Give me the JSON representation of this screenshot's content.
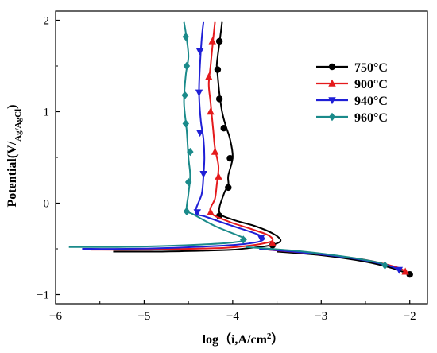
{
  "chart_data": {
    "type": "line",
    "title": "",
    "xlabel": "log（i,A/cm",
    "xlabel_sup": "2",
    "xlabel_end": "）",
    "ylabel": "Potential(V/",
    "ylabel_sub": "Ag/AgCl",
    "ylabel_end": ")",
    "xlim": [
      -6,
      -1.8
    ],
    "ylim": [
      -1.1,
      2.1
    ],
    "xticks": [
      -6,
      -5,
      -4,
      -3,
      -2
    ],
    "yticks": [
      -1,
      0,
      1,
      2
    ],
    "xtick_labels": [
      "−6",
      "−5",
      "−4",
      "−3",
      "−2"
    ],
    "ytick_labels": [
      "−1",
      "0",
      "1",
      "2"
    ],
    "legend_position": "top-right",
    "series": [
      {
        "name": "750°C",
        "color": "#000000",
        "marker": "circle",
        "x": [
          -5.35,
          -4.8,
          -4.3,
          -4.0,
          -3.8,
          -3.62,
          -3.5,
          -3.46,
          -3.55,
          -3.75,
          -4.0,
          -4.15,
          -4.1,
          -4.05,
          -4.05,
          -4.0,
          -4.03,
          -4.08,
          -4.12,
          -4.15,
          -4.17,
          -4.18,
          -4.17,
          -4.15,
          -4.13,
          -4.12
        ],
        "y": [
          -0.53,
          -0.53,
          -0.52,
          -0.51,
          -0.49,
          -0.47,
          -0.44,
          -0.4,
          -0.33,
          -0.25,
          -0.18,
          -0.1,
          0.1,
          0.2,
          0.3,
          0.5,
          0.7,
          0.85,
          1.0,
          1.2,
          1.4,
          1.5,
          1.6,
          1.75,
          1.9,
          1.98
        ],
        "marker_x": [
          -3.55,
          -4.15,
          -4.05,
          -4.03,
          -4.1,
          -4.15,
          -4.17,
          -4.15
        ],
        "marker_y": [
          -0.46,
          -0.14,
          0.17,
          0.49,
          0.82,
          1.14,
          1.46,
          1.77
        ],
        "cathodic_x": [
          -3.5,
          -3.0,
          -2.5,
          -2.2,
          -2.0
        ],
        "cathodic_y": [
          -0.53,
          -0.57,
          -0.64,
          -0.71,
          -0.78
        ]
      },
      {
        "name": "900°C",
        "color": "#e41a1c",
        "marker": "triangle-up",
        "x": [
          -5.6,
          -5.0,
          -4.5,
          -4.1,
          -3.85,
          -3.65,
          -3.55,
          -3.6,
          -3.8,
          -4.05,
          -4.25,
          -4.2,
          -4.18,
          -4.16,
          -4.2,
          -4.22,
          -4.25,
          -4.27,
          -4.25,
          -4.22,
          -4.2
        ],
        "y": [
          -0.51,
          -0.51,
          -0.5,
          -0.49,
          -0.47,
          -0.44,
          -0.41,
          -0.35,
          -0.28,
          -0.2,
          -0.1,
          0.05,
          0.2,
          0.4,
          0.6,
          0.8,
          1.1,
          1.3,
          1.5,
          1.8,
          1.98
        ],
        "marker_x": [
          -3.55,
          -4.25,
          -4.16,
          -4.2,
          -4.25,
          -4.27,
          -4.23
        ],
        "marker_y": [
          -0.44,
          -0.1,
          0.29,
          0.56,
          1.0,
          1.38,
          1.77
        ],
        "cathodic_x": [
          -3.6,
          -3.0,
          -2.5,
          -2.15,
          -2.05
        ],
        "cathodic_y": [
          -0.51,
          -0.56,
          -0.62,
          -0.7,
          -0.75
        ]
      },
      {
        "name": "940°C",
        "color": "#1f1fd6",
        "marker": "triangle-down",
        "x": [
          -5.7,
          -5.2,
          -4.7,
          -4.2,
          -3.9,
          -3.7,
          -3.65,
          -3.75,
          -4.0,
          -4.3,
          -4.42,
          -4.35,
          -4.33,
          -4.32,
          -4.33,
          -4.36,
          -4.38,
          -4.37,
          -4.35,
          -4.33
        ],
        "y": [
          -0.5,
          -0.5,
          -0.49,
          -0.47,
          -0.45,
          -0.42,
          -0.38,
          -0.33,
          -0.25,
          -0.15,
          -0.1,
          0.1,
          0.3,
          0.5,
          0.7,
          0.9,
          1.2,
          1.5,
          1.8,
          1.98
        ],
        "marker_x": [
          -3.68,
          -4.4,
          -4.33,
          -4.37,
          -4.38,
          -4.37
        ],
        "marker_y": [
          -0.38,
          -0.1,
          0.32,
          0.77,
          1.21,
          1.66
        ],
        "cathodic_x": [
          -3.7,
          -3.1,
          -2.6,
          -2.25,
          -2.12
        ],
        "cathodic_y": [
          -0.5,
          -0.55,
          -0.61,
          -0.68,
          -0.73
        ]
      },
      {
        "name": "960°C",
        "color": "#1a8a8a",
        "marker": "diamond",
        "x": [
          -5.85,
          -5.3,
          -4.8,
          -4.3,
          -4.0,
          -3.85,
          -3.95,
          -4.2,
          -4.45,
          -4.52,
          -4.5,
          -4.48,
          -4.5,
          -4.52,
          -4.55,
          -4.53,
          -4.5,
          -4.52,
          -4.55
        ],
        "y": [
          -0.48,
          -0.48,
          -0.47,
          -0.45,
          -0.43,
          -0.4,
          -0.35,
          -0.25,
          -0.12,
          -0.08,
          0.1,
          0.3,
          0.5,
          0.8,
          1.1,
          1.4,
          1.6,
          1.8,
          1.98
        ],
        "marker_x": [
          -3.88,
          -4.52,
          -4.5,
          -4.48,
          -4.53,
          -4.54,
          -4.52
        ],
        "marker_y": [
          -0.4,
          -0.09,
          0.23,
          0.56,
          0.87,
          1.18,
          1.5
        ],
        "marker_x_top": -4.53,
        "marker_y_top": 1.82,
        "cathodic_x": [
          -3.85,
          -3.2,
          -2.7,
          -2.35,
          -2.28
        ],
        "cathodic_y": [
          -0.48,
          -0.53,
          -0.59,
          -0.65,
          -0.68
        ]
      }
    ]
  }
}
